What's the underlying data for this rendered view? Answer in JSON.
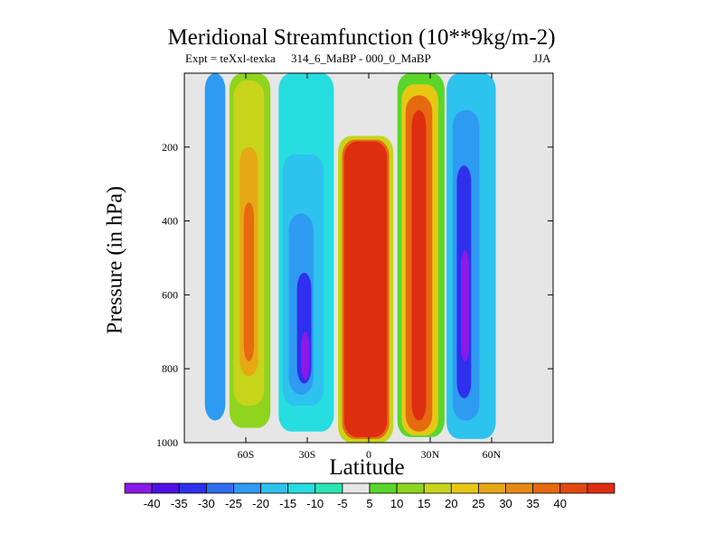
{
  "chart_data": {
    "type": "heatmap",
    "title": "Meridional Streamfunction (10**9kg/m-2)",
    "subtitle_left": "Expt = teXxl-texka",
    "subtitle_center": "314_6_MaBP - 000_0_MaBP",
    "subtitle_right": "JJA",
    "xlabel": "Latitude",
    "ylabel": "Pressure (in hPa)",
    "xlim": [
      -90,
      90
    ],
    "ylim": [
      1000,
      0
    ],
    "x_ticks": [
      {
        "value": -60,
        "label": "60S"
      },
      {
        "value": -30,
        "label": "30S"
      },
      {
        "value": 0,
        "label": "0"
      },
      {
        "value": 30,
        "label": "30N"
      },
      {
        "value": 60,
        "label": "60N"
      }
    ],
    "y_ticks": [
      {
        "value": 200,
        "label": "200"
      },
      {
        "value": 400,
        "label": "400"
      },
      {
        "value": 600,
        "label": "600"
      },
      {
        "value": 800,
        "label": "800"
      },
      {
        "value": 1000,
        "label": "1000"
      }
    ],
    "missing_color": "#e6e6e6",
    "colorbar": {
      "colors": [
        "#8a1ae8",
        "#5010e6",
        "#2e30ee",
        "#2f6cf0",
        "#2f9af2",
        "#2ec2ee",
        "#26dde0",
        "#2ae6b2",
        "#e6e6e6",
        "#5ad62a",
        "#8fd41e",
        "#c8d41a",
        "#e6c814",
        "#e6a814",
        "#e68a14",
        "#e66a10",
        "#e04a10",
        "#de2e10"
      ],
      "labels": [
        "-40",
        "-35",
        "-30",
        "-25",
        "-20",
        "-15",
        "-10",
        "-5",
        "5",
        "10",
        "15",
        "20",
        "25",
        "30",
        "35",
        "40"
      ]
    },
    "regions": [
      {
        "band": -4,
        "lat": [
          -80,
          -70
        ],
        "p": [
          0,
          940
        ]
      },
      {
        "band": 3,
        "lat": [
          -68,
          -48
        ],
        "p": [
          0,
          960
        ]
      },
      {
        "band": 4,
        "lat": [
          -66,
          -51
        ],
        "p": [
          20,
          900
        ]
      },
      {
        "band": 6,
        "lat": [
          -63,
          -54
        ],
        "p": [
          200,
          820
        ]
      },
      {
        "band": 8,
        "lat": [
          -61,
          -56
        ],
        "p": [
          350,
          780
        ]
      },
      {
        "band": -2,
        "lat": [
          -44,
          -17
        ],
        "p": [
          0,
          970
        ]
      },
      {
        "band": -3,
        "lat": [
          -42,
          -22
        ],
        "p": [
          220,
          900
        ]
      },
      {
        "band": -4,
        "lat": [
          -39,
          -27
        ],
        "p": [
          380,
          870
        ]
      },
      {
        "band": -6,
        "lat": [
          -35,
          -28
        ],
        "p": [
          540,
          840
        ]
      },
      {
        "band": -8,
        "lat": [
          -33,
          -29
        ],
        "p": [
          700,
          830
        ]
      },
      {
        "band": 4,
        "lat": [
          -15,
          12
        ],
        "p": [
          170,
          1000
        ]
      },
      {
        "band": 8,
        "lat": [
          -13,
          10
        ],
        "p": [
          180,
          990
        ]
      },
      {
        "band": 10,
        "lat": [
          -12,
          9
        ],
        "p": [
          185,
          985
        ]
      },
      {
        "band": 2,
        "lat": [
          14,
          37
        ],
        "p": [
          0,
          985
        ]
      },
      {
        "band": 5,
        "lat": [
          16,
          34
        ],
        "p": [
          30,
          980
        ]
      },
      {
        "band": 8,
        "lat": [
          18,
          31
        ],
        "p": [
          60,
          970
        ]
      },
      {
        "band": 10,
        "lat": [
          21,
          28
        ],
        "p": [
          100,
          940
        ]
      },
      {
        "band": -3,
        "lat": [
          38,
          62
        ],
        "p": [
          0,
          990
        ]
      },
      {
        "band": -4,
        "lat": [
          41,
          54
        ],
        "p": [
          100,
          940
        ]
      },
      {
        "band": -6,
        "lat": [
          43,
          50
        ],
        "p": [
          250,
          880
        ]
      },
      {
        "band": -8,
        "lat": [
          45,
          49
        ],
        "p": [
          480,
          780
        ]
      }
    ]
  }
}
